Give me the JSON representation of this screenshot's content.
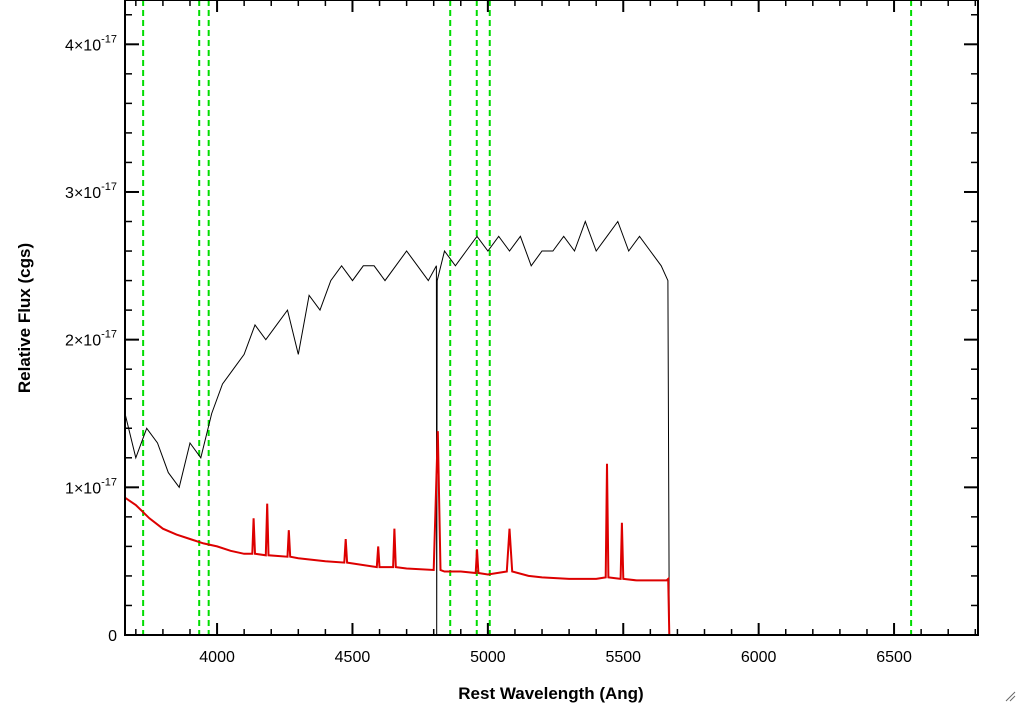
{
  "chart_data": {
    "type": "line",
    "title": "",
    "xlabel": "Rest Wavelength (Ang)",
    "ylabel": "Relative Flux (cgs)",
    "xlim": [
      3660,
      6810
    ],
    "ylim": [
      0,
      4.3e-17
    ],
    "x_ticks": [
      {
        "value": 4000,
        "label": "4000"
      },
      {
        "value": 4500,
        "label": "4500"
      },
      {
        "value": 5000,
        "label": "5000"
      },
      {
        "value": 5500,
        "label": "5500"
      },
      {
        "value": 6000,
        "label": "6000"
      },
      {
        "value": 6500,
        "label": "6500"
      }
    ],
    "y_ticks": [
      {
        "value": 0,
        "mantissa": "0",
        "exponent": ""
      },
      {
        "value": 1e-17,
        "mantissa": "1×10",
        "exponent": "-17"
      },
      {
        "value": 2e-17,
        "mantissa": "2×10",
        "exponent": "-17"
      },
      {
        "value": 3e-17,
        "mantissa": "3×10",
        "exponent": "-17"
      },
      {
        "value": 4e-17,
        "mantissa": "4×10",
        "exponent": "-17"
      }
    ],
    "grid": false,
    "legend": "none",
    "colors": {
      "observed": "#000000",
      "model": "#dd0000",
      "lines": "#00dd00"
    },
    "reference_lines": [
      3727,
      3934,
      3969,
      4861,
      4959,
      5007,
      6563
    ],
    "series": [
      {
        "color": "#000000",
        "x": [
          3660,
          3700,
          3740,
          3780,
          3820,
          3860,
          3900,
          3940,
          3980,
          4020,
          4060,
          4100,
          4140,
          4180,
          4220,
          4260,
          4300,
          4340,
          4380,
          4420,
          4460,
          4500,
          4540,
          4580,
          4620,
          4660,
          4700,
          4740,
          4780,
          4810,
          4811,
          4813,
          4840,
          4880,
          4920,
          4960,
          5000,
          5040,
          5080,
          5120,
          5160,
          5200,
          5240,
          5280,
          5320,
          5360,
          5400,
          5440,
          5480,
          5520,
          5560,
          5600,
          5640,
          5665,
          5670
        ],
        "y": [
          1.5e-17,
          1.2e-17,
          1.4e-17,
          1.3e-17,
          1.1e-17,
          1e-17,
          1.3e-17,
          1.2e-17,
          1.5e-17,
          1.7e-17,
          1.8e-17,
          1.9e-17,
          2.1e-17,
          2e-17,
          2.1e-17,
          2.2e-17,
          1.9e-17,
          2.3e-17,
          2.2e-17,
          2.4e-17,
          2.5e-17,
          2.4e-17,
          2.5e-17,
          2.5e-17,
          2.4e-17,
          2.5e-17,
          2.6e-17,
          2.5e-17,
          2.4e-17,
          2.5e-17,
          0.0,
          2.4e-17,
          2.6e-17,
          2.5e-17,
          2.6e-17,
          2.7e-17,
          2.6e-17,
          2.7e-17,
          2.6e-17,
          2.7e-17,
          2.5e-17,
          2.6e-17,
          2.6e-17,
          2.7e-17,
          2.6e-17,
          2.8e-17,
          2.6e-17,
          2.7e-17,
          2.8e-17,
          2.6e-17,
          2.7e-17,
          2.6e-17,
          2.5e-17,
          2.4e-17,
          0.0
        ]
      },
      {
        "color": "#dd0000",
        "x": [
          3660,
          3700,
          3750,
          3800,
          3850,
          3900,
          3950,
          4000,
          4050,
          4100,
          4130,
          4135,
          4140,
          4180,
          4185,
          4190,
          4260,
          4265,
          4270,
          4300,
          4400,
          4470,
          4475,
          4480,
          4590,
          4595,
          4600,
          4650,
          4655,
          4660,
          4700,
          4800,
          4815,
          4825,
          4840,
          4900,
          4955,
          4960,
          4965,
          5000,
          5070,
          5080,
          5090,
          5150,
          5200,
          5300,
          5400,
          5435,
          5440,
          5445,
          5490,
          5495,
          5500,
          5550,
          5600,
          5660,
          5666,
          5670,
          5700,
          6000,
          6500,
          6810
        ],
        "y": [
          9.3e-18,
          8.8e-18,
          7.9e-18,
          7.2e-18,
          6.8e-18,
          6.5e-18,
          6.2e-18,
          6e-18,
          5.7e-18,
          5.5e-18,
          5.5e-18,
          7.9e-18,
          5.5e-18,
          5.4e-18,
          8.9e-18,
          5.4e-18,
          5.3e-18,
          7.1e-18,
          5.3e-18,
          5.2e-18,
          5e-18,
          4.9e-18,
          6.5e-18,
          4.9e-18,
          4.6e-18,
          6e-18,
          4.6e-18,
          4.6e-18,
          7.2e-18,
          4.6e-18,
          4.5e-18,
          4.4e-18,
          1.38e-17,
          4.4e-18,
          4.3e-18,
          4.3e-18,
          4.2e-18,
          5.8e-18,
          4.2e-18,
          4.1e-18,
          4.3e-18,
          7.2e-18,
          4.3e-18,
          4e-18,
          3.9e-18,
          3.8e-18,
          3.8e-18,
          3.9e-18,
          1.16e-17,
          3.9e-18,
          3.8e-18,
          7.6e-18,
          3.8e-18,
          3.7e-18,
          3.7e-18,
          3.7e-18,
          3.8e-18,
          0.0,
          0.0,
          0.0,
          0.0,
          0.0
        ]
      }
    ]
  }
}
